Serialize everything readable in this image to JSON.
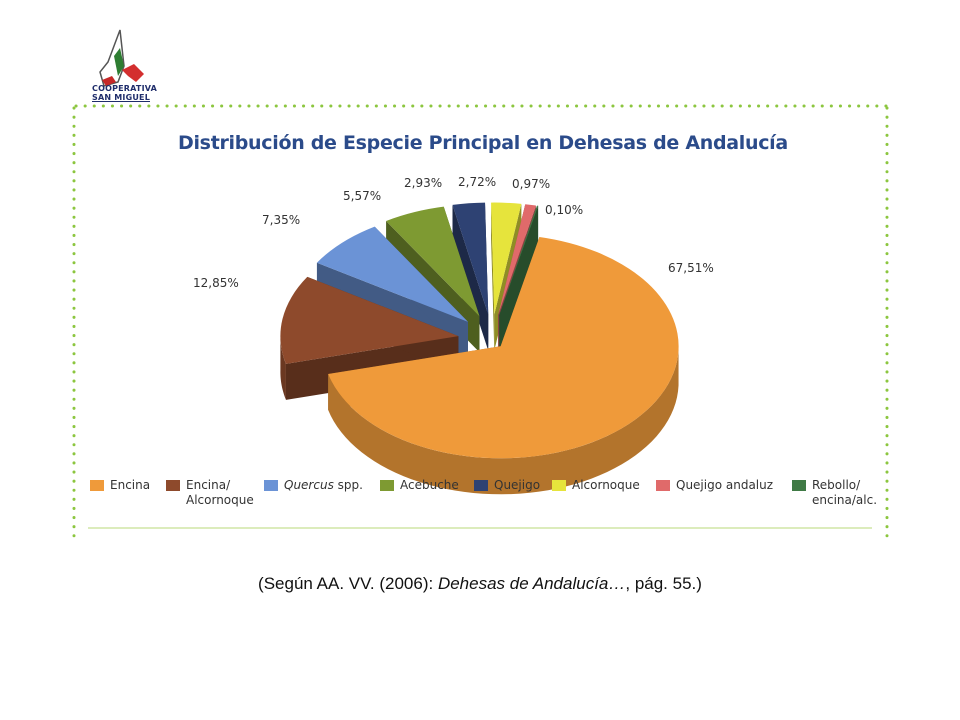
{
  "logo": {
    "line1": "COOPERATIVA",
    "line2": "SAN MIGUEL"
  },
  "chart_data": {
    "type": "pie",
    "title": "Distribución de Especie Principal en Dehesas de Andalucía",
    "three_d": true,
    "legend_position": "bottom",
    "slices": [
      {
        "label": "Encina",
        "value": 67.51,
        "value_label": "67,51%",
        "color": "#ef9a3a"
      },
      {
        "label": "Encina/ Alcornoque",
        "value": 12.85,
        "value_label": "12,85%",
        "color": "#8e4a2c"
      },
      {
        "label": "Quercus spp.",
        "value": 7.35,
        "value_label": "7,35%",
        "color": "#6b93d6"
      },
      {
        "label": "Acebuche",
        "value": 5.57,
        "value_label": "5,57%",
        "color": "#7e9a32"
      },
      {
        "label": "Quejigo",
        "value": 2.93,
        "value_label": "2,93%",
        "color": "#2e4273"
      },
      {
        "label": "Alcornoque",
        "value": 2.72,
        "value_label": "2,72%",
        "color": "#e6e43c"
      },
      {
        "label": "Quejigo andaluz",
        "value": 0.97,
        "value_label": "0,97%",
        "color": "#e06a6a"
      },
      {
        "label": "Rebollo/ encina/alc.",
        "value": 0.1,
        "value_label": "0,10%",
        "color": "#3f7a45"
      }
    ]
  },
  "legend": {
    "encina": "Encina",
    "encina_alc_1": "Encina/",
    "encina_alc_2": "Alcornoque",
    "quercus_it": "Quercus",
    "quercus_rest": " spp.",
    "acebuche": "Acebuche",
    "quejigo": "Quejigo",
    "alcornoque": "Alcornoque",
    "quejigo_andaluz": "Quejigo andaluz",
    "rebollo_1": "Rebollo/",
    "rebollo_2": "encina/alc."
  },
  "caption": {
    "part1": "(Según AA. VV. (2006): ",
    "part2": "Dehesas de Andalucía…",
    "part3": ", pág. 55.)"
  },
  "colors": {
    "frame_dots": "#8cc63f",
    "title": "#2b4b8a"
  }
}
